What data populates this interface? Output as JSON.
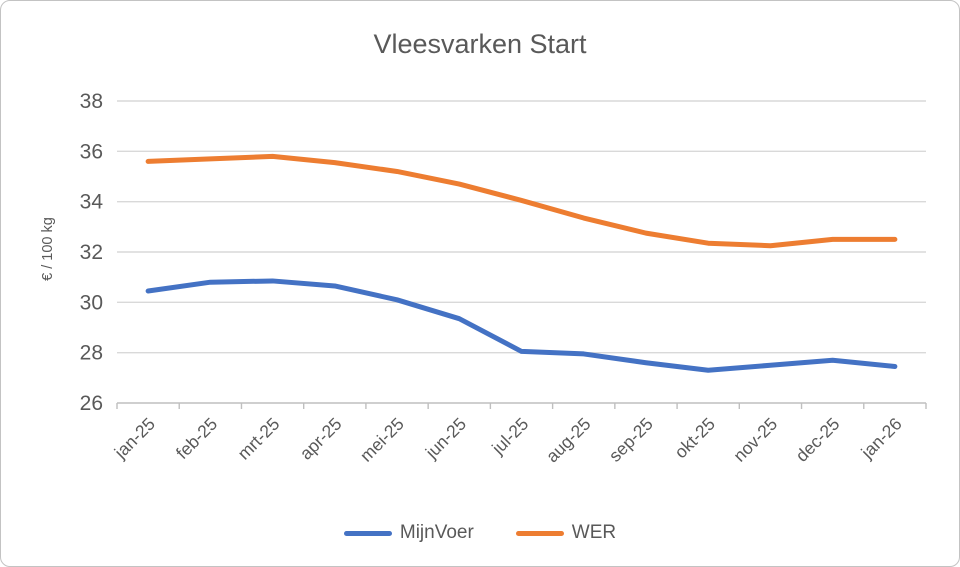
{
  "chart": {
    "title": "Vleesvarken Start"
  },
  "chart_data": {
    "type": "line",
    "title": "Vleesvarken Start",
    "xlabel": "",
    "ylabel": "€ / 100 kg",
    "categories": [
      "jan-25",
      "feb-25",
      "mrt-25",
      "apr-25",
      "mei-25",
      "jun-25",
      "jul-25",
      "aug-25",
      "sep-25",
      "okt-25",
      "nov-25",
      "dec-25",
      "jan-26"
    ],
    "series": [
      {
        "name": "MijnVoer",
        "color": "#4472C4",
        "values": [
          30.45,
          30.8,
          30.85,
          30.65,
          30.1,
          29.35,
          28.05,
          27.95,
          27.6,
          27.3,
          27.5,
          27.7,
          27.45
        ]
      },
      {
        "name": "WER",
        "color": "#ED7D31",
        "values": [
          35.6,
          35.7,
          35.8,
          35.55,
          35.2,
          34.7,
          34.05,
          33.35,
          32.75,
          32.35,
          32.25,
          32.5,
          32.5
        ]
      }
    ],
    "ylim": [
      26,
      38
    ],
    "yticks": [
      26,
      28,
      30,
      32,
      34,
      36,
      38
    ],
    "grid": true,
    "legend_position": "bottom",
    "colors": {
      "gridline": "#d9d9d9",
      "axis_line": "#bfbfbf",
      "tick_label": "#595959",
      "title": "#595959"
    }
  }
}
